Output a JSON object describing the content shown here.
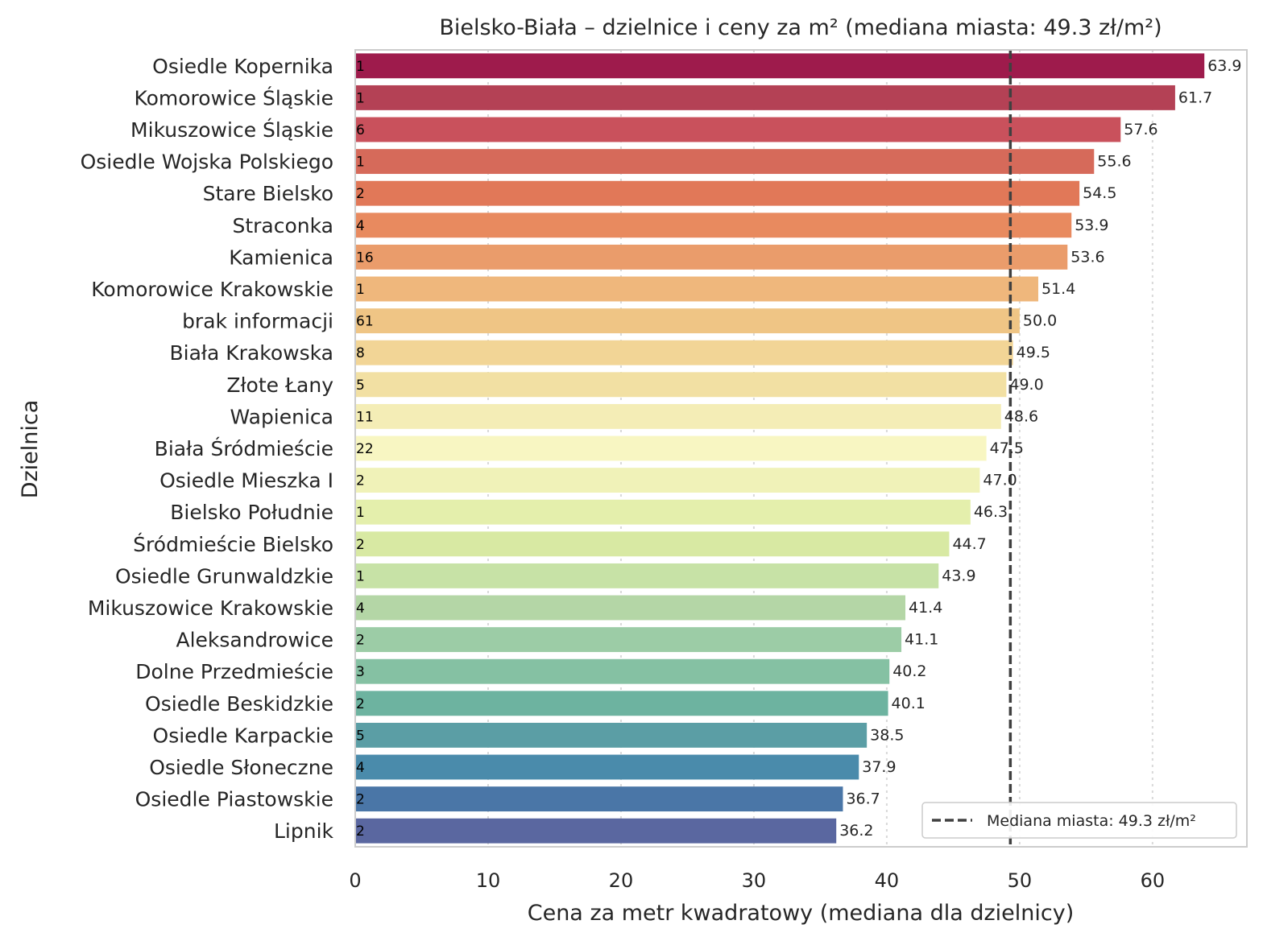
{
  "chart_data": {
    "type": "bar",
    "orientation": "horizontal",
    "title": "Bielsko-Biała – dzielnice i ceny za m² (mediana miasta: 49.3 zł/m²)",
    "xlabel": "Cena za metr kwadratowy (mediana dla dzielnicy)",
    "ylabel": "Dzielnica",
    "xlim": [
      0,
      67.1
    ],
    "xticks": [
      0,
      10,
      20,
      30,
      40,
      50,
      60
    ],
    "grid": "x",
    "categories": [
      "Osiedle Kopernika",
      "Komorowice Śląskie",
      "Mikuszowice Śląskie",
      "Osiedle Wojska Polskiego",
      "Stare Bielsko",
      "Straconka",
      "Kamienica",
      "Komorowice Krakowskie",
      "brak informacji",
      "Biała Krakowska",
      "Złote Łany",
      "Wapienica",
      "Biała Śródmieście",
      "Osiedle Mieszka I",
      "Bielsko Południe",
      "Śródmieście Bielsko",
      "Osiedle Grunwaldzkie",
      "Mikuszowice Krakowskie",
      "Aleksandrowice",
      "Dolne Przedmieście",
      "Osiedle Beskidzkie",
      "Osiedle Karpackie",
      "Osiedle Słoneczne",
      "Osiedle Piastowskie",
      "Lipnik"
    ],
    "values": [
      63.9,
      61.7,
      57.6,
      55.6,
      54.5,
      53.9,
      53.6,
      51.4,
      50.0,
      49.5,
      49.0,
      48.6,
      47.5,
      47.0,
      46.3,
      44.7,
      43.9,
      41.4,
      41.1,
      40.2,
      40.1,
      38.5,
      37.9,
      36.7,
      36.2
    ],
    "value_labels": [
      "63.9",
      "61.7",
      "57.6",
      "55.6",
      "54.5",
      "53.9",
      "53.6",
      "51.4",
      "50.0",
      "49.5",
      "49.0",
      "48.6",
      "47.5",
      "47.0",
      "46.3",
      "44.7",
      "43.9",
      "41.4",
      "41.1",
      "40.2",
      "40.1",
      "38.5",
      "37.9",
      "36.7",
      "36.2"
    ],
    "counts": [
      "1",
      "1",
      "6",
      "1",
      "2",
      "4",
      "16",
      "1",
      "61",
      "8",
      "5",
      "11",
      "22",
      "2",
      "1",
      "2",
      "1",
      "4",
      "2",
      "3",
      "2",
      "5",
      "4",
      "2",
      "2"
    ],
    "colors": [
      "#9e1b4c",
      "#b44155",
      "#c9515c",
      "#d66a5a",
      "#e17858",
      "#e88a5f",
      "#ea9c6b",
      "#efb77c",
      "#efc585",
      "#f2d596",
      "#f2e0a3",
      "#f4edb6",
      "#f8f6c2",
      "#f0f2b8",
      "#e4efac",
      "#d8e9a3",
      "#c7e2a6",
      "#b4d6a6",
      "#9ccca6",
      "#85c1a3",
      "#6db3a0",
      "#5b9ea5",
      "#4a8bab",
      "#4a76a7",
      "#5a67a0"
    ],
    "median": 49.3,
    "median_line_style": "dashed",
    "legend": {
      "label": "Mediana miasta: 49.3 zł/m²",
      "placement": "bottom-right"
    }
  }
}
